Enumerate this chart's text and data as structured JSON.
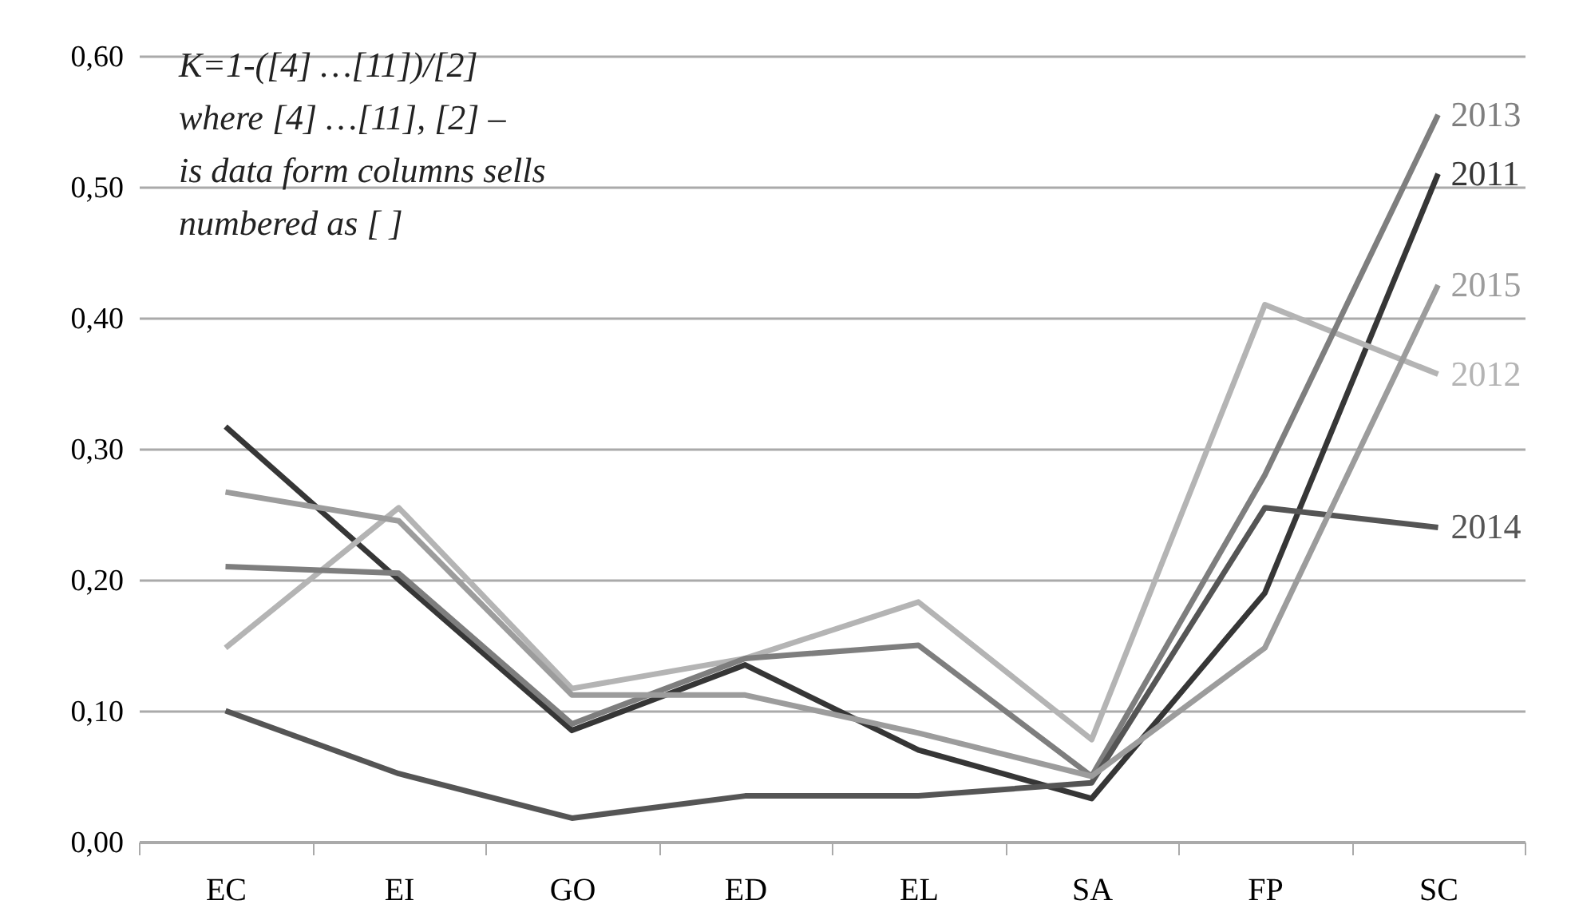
{
  "chart_data": {
    "type": "line",
    "categories": [
      "EC",
      "EI",
      "GO",
      "ED",
      "EL",
      "SA",
      "FP",
      "SC"
    ],
    "series": [
      {
        "name": "2011",
        "color": "#363636",
        "values": [
          0.317,
          0.2,
          0.085,
          0.135,
          0.07,
          0.033,
          0.19,
          0.51
        ]
      },
      {
        "name": "2012",
        "color": "#b4b4b4",
        "values": [
          0.148,
          0.255,
          0.117,
          0.14,
          0.183,
          0.078,
          0.41,
          0.357
        ]
      },
      {
        "name": "2013",
        "color": "#7e7e7e",
        "values": [
          0.21,
          0.205,
          0.09,
          0.14,
          0.15,
          0.05,
          0.28,
          0.555
        ]
      },
      {
        "name": "2014",
        "color": "#555555",
        "values": [
          0.1,
          0.052,
          0.018,
          0.035,
          0.035,
          0.045,
          0.255,
          0.24
        ]
      },
      {
        "name": "2015",
        "color": "#9c9c9c",
        "values": [
          0.267,
          0.245,
          0.112,
          0.112,
          0.083,
          0.05,
          0.148,
          0.425
        ]
      }
    ],
    "ylim": [
      0,
      0.6
    ],
    "yticks": [
      {
        "value": 0,
        "label": "0,00"
      },
      {
        "value": 0.1,
        "label": "0,10"
      },
      {
        "value": 0.2,
        "label": "0,20"
      },
      {
        "value": 0.3,
        "label": "0,30"
      },
      {
        "value": 0.4,
        "label": "0,40"
      },
      {
        "value": 0.5,
        "label": "0,50"
      },
      {
        "value": 0.6,
        "label": "0,60"
      }
    ],
    "grid": "y",
    "legend": false,
    "marker": "none",
    "line_style": "solid",
    "annotations": [
      "К=1-([4] …[11])/[2]",
      "where [4] …[11], [2] –",
      "is data form columns sells",
      "numbered as [ ]"
    ]
  }
}
